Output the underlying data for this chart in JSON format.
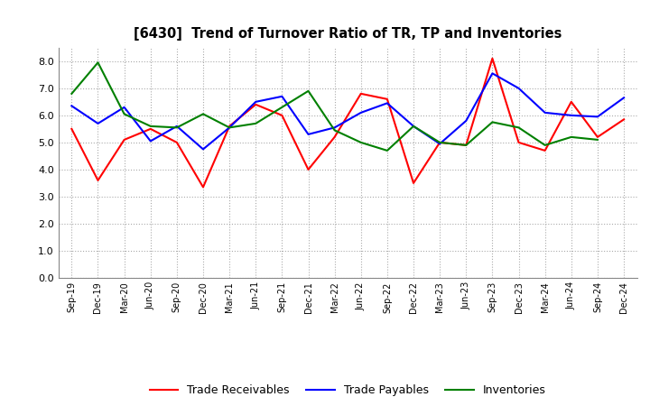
{
  "title": "[6430]  Trend of Turnover Ratio of TR, TP and Inventories",
  "labels": [
    "Sep-19",
    "Dec-19",
    "Mar-20",
    "Jun-20",
    "Sep-20",
    "Dec-20",
    "Mar-21",
    "Jun-21",
    "Sep-21",
    "Dec-21",
    "Mar-22",
    "Jun-22",
    "Sep-22",
    "Dec-22",
    "Mar-23",
    "Jun-23",
    "Sep-23",
    "Dec-23",
    "Mar-24",
    "Jun-24",
    "Sep-24",
    "Dec-24"
  ],
  "trade_receivables": [
    5.5,
    3.6,
    5.1,
    5.5,
    5.0,
    3.35,
    5.6,
    6.4,
    6.0,
    4.0,
    5.2,
    6.8,
    6.6,
    3.5,
    5.0,
    4.9,
    8.1,
    5.0,
    4.7,
    6.5,
    5.2,
    5.85
  ],
  "trade_payables": [
    6.35,
    5.7,
    6.3,
    5.05,
    5.6,
    4.75,
    5.55,
    6.5,
    6.7,
    5.3,
    5.55,
    6.1,
    6.45,
    5.6,
    4.95,
    5.8,
    7.55,
    7.0,
    6.1,
    6.0,
    5.95,
    6.65
  ],
  "inventories": [
    6.8,
    7.95,
    6.05,
    5.6,
    5.55,
    6.05,
    5.55,
    5.7,
    6.3,
    6.9,
    5.45,
    5.0,
    4.7,
    5.6,
    5.0,
    4.9,
    5.75,
    5.55,
    4.9,
    5.2,
    5.1,
    null
  ],
  "ylim": [
    0.0,
    8.5
  ],
  "yticks": [
    0.0,
    1.0,
    2.0,
    3.0,
    4.0,
    5.0,
    6.0,
    7.0,
    8.0
  ],
  "tr_color": "#ff0000",
  "tp_color": "#0000ff",
  "inv_color": "#008000",
  "background_color": "#ffffff",
  "grid_color": "#aaaaaa",
  "legend_labels": [
    "Trade Receivables",
    "Trade Payables",
    "Inventories"
  ]
}
